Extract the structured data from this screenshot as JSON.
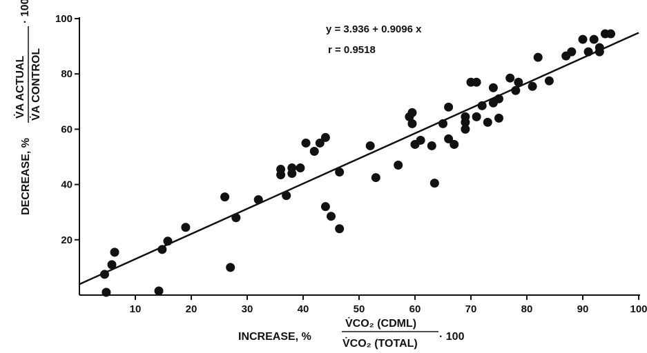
{
  "chart_data": {
    "type": "scatter",
    "title": "",
    "xlabel": "INCREASE, %",
    "xlabel_fraction": {
      "numerator": "V̇CO₂ (CDML)",
      "denominator": "V̇CO₂ (TOTAL)",
      "multiplier": "· 100"
    },
    "ylabel": "DECREASE, %",
    "ylabel_fraction": {
      "numerator": "V̇A ACTUAL",
      "denominator": "V̇A CONTROL",
      "multiplier": "· 100"
    },
    "xlim": [
      0,
      100
    ],
    "ylim": [
      0,
      100
    ],
    "x_ticks": [
      "10",
      "20",
      "30",
      "40",
      "50",
      "60",
      "70",
      "80",
      "90",
      "100"
    ],
    "y_ticks": [
      "20",
      "40",
      "60",
      "80",
      "100"
    ],
    "grid": false,
    "legend": "none",
    "regression": {
      "equation": "y = 3.936 + 0.9096 x",
      "r_label": "r = 0.9518",
      "intercept": 3.936,
      "slope": 0.9096
    },
    "colors": {
      "marker": "#111111",
      "line": "#111111",
      "background": "#ffffff"
    },
    "points": [
      {
        "x": 4.5,
        "y": 7.5
      },
      {
        "x": 4.8,
        "y": 1
      },
      {
        "x": 5.8,
        "y": 11
      },
      {
        "x": 6.3,
        "y": 15.5
      },
      {
        "x": 14.2,
        "y": 1.5
      },
      {
        "x": 14.8,
        "y": 16.5
      },
      {
        "x": 15.8,
        "y": 19.5
      },
      {
        "x": 19,
        "y": 24.5
      },
      {
        "x": 26,
        "y": 35.5
      },
      {
        "x": 27,
        "y": 10
      },
      {
        "x": 28,
        "y": 28
      },
      {
        "x": 32,
        "y": 34.5
      },
      {
        "x": 36,
        "y": 43.5
      },
      {
        "x": 36,
        "y": 45.5
      },
      {
        "x": 37,
        "y": 36
      },
      {
        "x": 38,
        "y": 44
      },
      {
        "x": 38,
        "y": 46
      },
      {
        "x": 39.5,
        "y": 46
      },
      {
        "x": 40.5,
        "y": 55
      },
      {
        "x": 42,
        "y": 52
      },
      {
        "x": 43,
        "y": 55
      },
      {
        "x": 44,
        "y": 57
      },
      {
        "x": 44,
        "y": 32
      },
      {
        "x": 45,
        "y": 28.5
      },
      {
        "x": 46.5,
        "y": 44.5
      },
      {
        "x": 46.5,
        "y": 24
      },
      {
        "x": 52,
        "y": 54
      },
      {
        "x": 53,
        "y": 42.5
      },
      {
        "x": 57,
        "y": 47
      },
      {
        "x": 59,
        "y": 64.5
      },
      {
        "x": 59.5,
        "y": 62
      },
      {
        "x": 59.5,
        "y": 66
      },
      {
        "x": 60,
        "y": 54.5
      },
      {
        "x": 61,
        "y": 56
      },
      {
        "x": 63,
        "y": 54
      },
      {
        "x": 63.5,
        "y": 40.5
      },
      {
        "x": 65,
        "y": 62
      },
      {
        "x": 66,
        "y": 68
      },
      {
        "x": 66,
        "y": 56.5
      },
      {
        "x": 67,
        "y": 54.5
      },
      {
        "x": 69,
        "y": 60
      },
      {
        "x": 69,
        "y": 62.5
      },
      {
        "x": 69,
        "y": 64.5
      },
      {
        "x": 70,
        "y": 77
      },
      {
        "x": 71,
        "y": 77
      },
      {
        "x": 71,
        "y": 64.5
      },
      {
        "x": 72,
        "y": 68.5
      },
      {
        "x": 73,
        "y": 62.5
      },
      {
        "x": 74,
        "y": 75
      },
      {
        "x": 74,
        "y": 69.5
      },
      {
        "x": 75,
        "y": 71
      },
      {
        "x": 75,
        "y": 64
      },
      {
        "x": 77,
        "y": 78.5
      },
      {
        "x": 78,
        "y": 74
      },
      {
        "x": 78.5,
        "y": 77
      },
      {
        "x": 81,
        "y": 75.5
      },
      {
        "x": 82,
        "y": 86
      },
      {
        "x": 84,
        "y": 77.5
      },
      {
        "x": 87,
        "y": 86.5
      },
      {
        "x": 88,
        "y": 88
      },
      {
        "x": 90,
        "y": 92.5
      },
      {
        "x": 91,
        "y": 88
      },
      {
        "x": 92,
        "y": 92.5
      },
      {
        "x": 93,
        "y": 89.5
      },
      {
        "x": 93,
        "y": 88
      },
      {
        "x": 94,
        "y": 94.5
      },
      {
        "x": 95,
        "y": 94.5
      }
    ]
  }
}
